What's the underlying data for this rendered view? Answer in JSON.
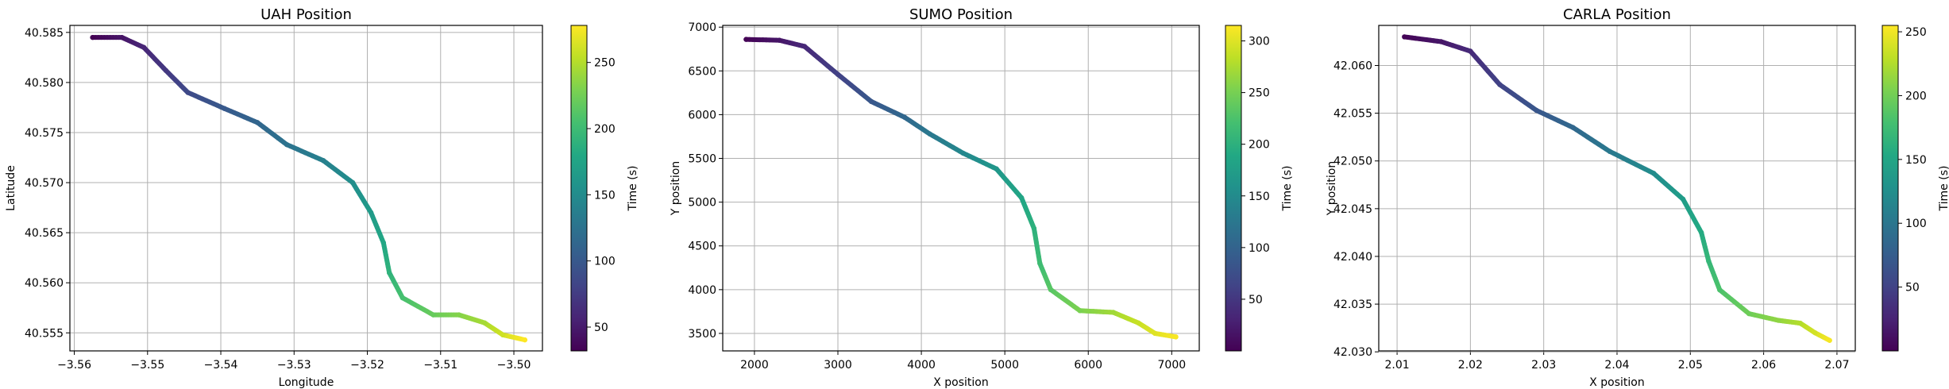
{
  "chart_data": [
    {
      "type": "scatter",
      "title": "UAH Position",
      "xlabel": "Longitude",
      "ylabel": "Latitude",
      "colorbar_label": "Time (s)",
      "colormap": "viridis",
      "grid": true,
      "xlim": [
        -3.5606,
        -3.4961
      ],
      "ylim": [
        40.5532,
        40.5857
      ],
      "xticks": [
        -3.56,
        -3.55,
        -3.54,
        -3.53,
        -3.52,
        -3.51,
        -3.5
      ],
      "xtick_labels": [
        "−3.56",
        "−3.55",
        "−3.54",
        "−3.53",
        "−3.52",
        "−3.51",
        "−3.50"
      ],
      "yticks": [
        40.555,
        40.56,
        40.565,
        40.57,
        40.575,
        40.58,
        40.585
      ],
      "ytick_labels": [
        "40.555",
        "40.560",
        "40.565",
        "40.570",
        "40.575",
        "40.580",
        "40.585"
      ],
      "clim": [
        32,
        278
      ],
      "cticks": [
        50,
        100,
        150,
        200,
        250
      ],
      "ctick_labels": [
        "50",
        "100",
        "150",
        "200",
        "250"
      ],
      "trajectory": [
        {
          "x": -3.5575,
          "y": 40.5845,
          "t": 32
        },
        {
          "x": -3.5535,
          "y": 40.5845,
          "t": 45
        },
        {
          "x": -3.5505,
          "y": 40.5835,
          "t": 58
        },
        {
          "x": -3.5475,
          "y": 40.5812,
          "t": 72
        },
        {
          "x": -3.5445,
          "y": 40.579,
          "t": 86
        },
        {
          "x": -3.5395,
          "y": 40.5774,
          "t": 100
        },
        {
          "x": -3.535,
          "y": 40.576,
          "t": 112
        },
        {
          "x": -3.531,
          "y": 40.5738,
          "t": 125
        },
        {
          "x": -3.526,
          "y": 40.5722,
          "t": 138
        },
        {
          "x": -3.522,
          "y": 40.57,
          "t": 152
        },
        {
          "x": -3.5195,
          "y": 40.567,
          "t": 165
        },
        {
          "x": -3.5178,
          "y": 40.564,
          "t": 178
        },
        {
          "x": -3.517,
          "y": 40.561,
          "t": 190
        },
        {
          "x": -3.5152,
          "y": 40.5585,
          "t": 205
        },
        {
          "x": -3.511,
          "y": 40.5568,
          "t": 220
        },
        {
          "x": -3.5075,
          "y": 40.5568,
          "t": 232
        },
        {
          "x": -3.504,
          "y": 40.556,
          "t": 245
        },
        {
          "x": -3.5015,
          "y": 40.5548,
          "t": 260
        },
        {
          "x": -3.4985,
          "y": 40.5543,
          "t": 278
        }
      ]
    },
    {
      "type": "scatter",
      "title": "SUMO Position",
      "xlabel": "X position",
      "ylabel": "Y position",
      "colorbar_label": "Time (s)",
      "colormap": "viridis",
      "grid": true,
      "xlim": [
        1620,
        7330
      ],
      "ylim": [
        3300,
        7020
      ],
      "xticks": [
        2000,
        3000,
        4000,
        5000,
        6000,
        7000
      ],
      "xtick_labels": [
        "2000",
        "3000",
        "4000",
        "5000",
        "6000",
        "7000"
      ],
      "yticks": [
        3500,
        4000,
        4500,
        5000,
        5500,
        6000,
        6500,
        7000
      ],
      "ytick_labels": [
        "3500",
        "4000",
        "4500",
        "5000",
        "5500",
        "6000",
        "6500",
        "7000"
      ],
      "clim": [
        0,
        315
      ],
      "cticks": [
        50,
        100,
        150,
        200,
        250,
        300
      ],
      "ctick_labels": [
        "50",
        "100",
        "150",
        "200",
        "250",
        "300"
      ],
      "trajectory": [
        {
          "x": 1900,
          "y": 6860,
          "t": 2
        },
        {
          "x": 2300,
          "y": 6850,
          "t": 18
        },
        {
          "x": 2600,
          "y": 6780,
          "t": 35
        },
        {
          "x": 3000,
          "y": 6460,
          "t": 60
        },
        {
          "x": 3400,
          "y": 6150,
          "t": 85
        },
        {
          "x": 3800,
          "y": 5970,
          "t": 105
        },
        {
          "x": 4100,
          "y": 5780,
          "t": 125
        },
        {
          "x": 4500,
          "y": 5560,
          "t": 145
        },
        {
          "x": 4900,
          "y": 5380,
          "t": 165
        },
        {
          "x": 5200,
          "y": 5050,
          "t": 185
        },
        {
          "x": 5350,
          "y": 4700,
          "t": 200
        },
        {
          "x": 5420,
          "y": 4300,
          "t": 215
        },
        {
          "x": 5550,
          "y": 4000,
          "t": 232
        },
        {
          "x": 5900,
          "y": 3760,
          "t": 252
        },
        {
          "x": 6300,
          "y": 3740,
          "t": 270
        },
        {
          "x": 6600,
          "y": 3620,
          "t": 288
        },
        {
          "x": 6800,
          "y": 3500,
          "t": 300
        },
        {
          "x": 7050,
          "y": 3460,
          "t": 312
        }
      ]
    },
    {
      "type": "scatter",
      "title": "CARLA Position",
      "xlabel": "X position",
      "ylabel": "Y position",
      "colorbar_label": "Time (s)",
      "colormap": "viridis",
      "grid": true,
      "xlim": [
        2.0075,
        2.0725
      ],
      "ylim": [
        42.0301,
        42.0642
      ],
      "xticks": [
        2.01,
        2.02,
        2.03,
        2.04,
        2.05,
        2.06,
        2.07
      ],
      "xtick_labels": [
        "2.01",
        "2.02",
        "2.03",
        "2.04",
        "2.05",
        "2.06",
        "2.07"
      ],
      "yticks": [
        42.03,
        42.035,
        42.04,
        42.045,
        42.05,
        42.055,
        42.06
      ],
      "ytick_labels": [
        "42.030",
        "42.035",
        "42.040",
        "42.045",
        "42.050",
        "42.055",
        "42.060"
      ],
      "clim": [
        0,
        255
      ],
      "cticks": [
        50,
        100,
        150,
        200,
        250
      ],
      "ctick_labels": [
        "50",
        "100",
        "150",
        "200",
        "250"
      ],
      "trajectory": [
        {
          "x": 2.011,
          "y": 42.063,
          "t": 2
        },
        {
          "x": 2.016,
          "y": 42.0625,
          "t": 15
        },
        {
          "x": 2.02,
          "y": 42.0615,
          "t": 30
        },
        {
          "x": 2.024,
          "y": 42.058,
          "t": 50
        },
        {
          "x": 2.029,
          "y": 42.0553,
          "t": 68
        },
        {
          "x": 2.034,
          "y": 42.0535,
          "t": 85
        },
        {
          "x": 2.039,
          "y": 42.051,
          "t": 102
        },
        {
          "x": 2.045,
          "y": 42.0487,
          "t": 122
        },
        {
          "x": 2.049,
          "y": 42.046,
          "t": 140
        },
        {
          "x": 2.0515,
          "y": 42.0425,
          "t": 155
        },
        {
          "x": 2.0525,
          "y": 42.0395,
          "t": 168
        },
        {
          "x": 2.054,
          "y": 42.0365,
          "t": 182
        },
        {
          "x": 2.058,
          "y": 42.034,
          "t": 198
        },
        {
          "x": 2.062,
          "y": 42.0333,
          "t": 212
        },
        {
          "x": 2.065,
          "y": 42.033,
          "t": 225
        },
        {
          "x": 2.067,
          "y": 42.032,
          "t": 238
        },
        {
          "x": 2.069,
          "y": 42.0312,
          "t": 252
        }
      ]
    }
  ]
}
